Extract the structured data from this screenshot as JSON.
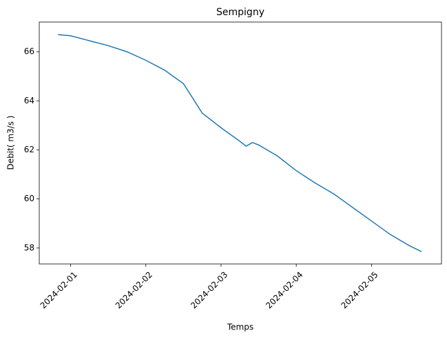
{
  "chart_data": {
    "type": "line",
    "title": "Sempigny",
    "x_label": "Temps",
    "y_label": "Debit( m3/s )",
    "x": [
      "2024-01-31T20:00",
      "2024-02-01T00:00",
      "2024-02-01T06:00",
      "2024-02-01T12:00",
      "2024-02-01T18:00",
      "2024-02-02T00:00",
      "2024-02-02T06:00",
      "2024-02-02T12:00",
      "2024-02-02T15:00",
      "2024-02-02T18:00",
      "2024-02-03T00:00",
      "2024-02-03T06:00",
      "2024-02-03T08:00",
      "2024-02-03T10:00",
      "2024-02-03T12:00",
      "2024-02-03T18:00",
      "2024-02-04T00:00",
      "2024-02-04T06:00",
      "2024-02-04T12:00",
      "2024-02-04T18:00",
      "2024-02-05T00:00",
      "2024-02-05T06:00",
      "2024-02-05T12:00",
      "2024-02-05T16:00"
    ],
    "series": [
      {
        "name": "Debit",
        "color": "#1f77b4",
        "values": [
          66.7,
          66.65,
          66.45,
          66.25,
          66.0,
          65.65,
          65.25,
          64.7,
          64.1,
          63.5,
          62.9,
          62.35,
          62.15,
          62.3,
          62.2,
          61.75,
          61.15,
          60.65,
          60.2,
          59.65,
          59.1,
          58.55,
          58.1,
          57.85
        ]
      }
    ],
    "xlim": [
      "2024-01-31T14:00",
      "2024-02-05T22:20"
    ],
    "xticks": [
      "2024-02-01",
      "2024-02-02",
      "2024-02-03",
      "2024-02-04",
      "2024-02-05"
    ],
    "ylim": [
      57.35,
      67.21
    ],
    "yticks": [
      58,
      60,
      62,
      64,
      66
    ]
  }
}
